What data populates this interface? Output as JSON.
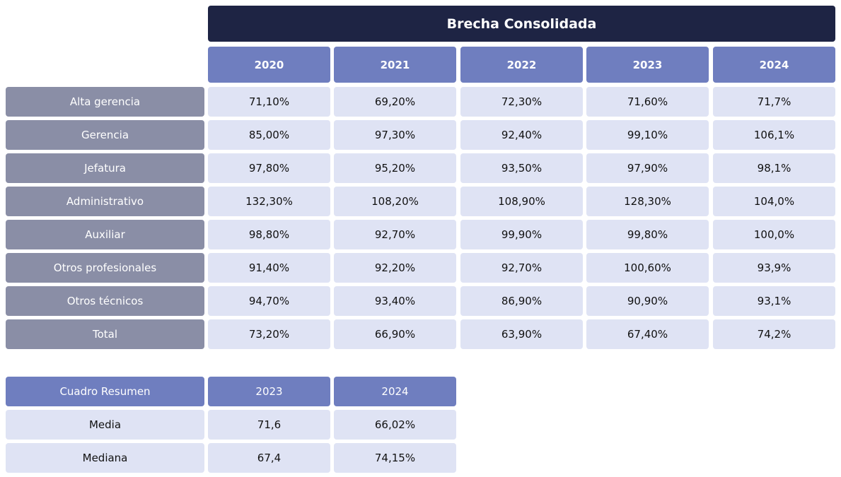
{
  "main_table": {
    "title": "Brecha Consolidada",
    "years": [
      "2020",
      "2021",
      "2022",
      "2023",
      "2024"
    ],
    "rows": [
      {
        "label": "Alta gerencia",
        "values": [
          "71,10%",
          "69,20%",
          "72,30%",
          "71,60%",
          "71,7%"
        ]
      },
      {
        "label": "Gerencia",
        "values": [
          "85,00%",
          "97,30%",
          "92,40%",
          "99,10%",
          "106,1%"
        ]
      },
      {
        "label": "Jefatura",
        "values": [
          "97,80%",
          "95,20%",
          "93,50%",
          "97,90%",
          "98,1%"
        ]
      },
      {
        "label": "Administrativo",
        "values": [
          "132,30%",
          "108,20%",
          "108,90%",
          "128,30%",
          "104,0%"
        ]
      },
      {
        "label": "Auxiliar",
        "values": [
          "98,80%",
          "92,70%",
          "99,90%",
          "99,80%",
          "100,0%"
        ]
      },
      {
        "label": "Otros profesionales",
        "values": [
          "91,40%",
          "92,20%",
          "92,70%",
          "100,60%",
          "93,9%"
        ]
      },
      {
        "label": "Otros técnicos",
        "values": [
          "94,70%",
          "93,40%",
          "86,90%",
          "90,90%",
          "93,1%"
        ]
      },
      {
        "label": "Total",
        "values": [
          "73,20%",
          "66,90%",
          "63,90%",
          "67,40%",
          "74,2%"
        ]
      }
    ]
  },
  "summary_table": {
    "header_label": "Cuadro Resumen",
    "years": [
      "2023",
      "2024"
    ],
    "rows": [
      {
        "label": "Media",
        "values": [
          "71,6",
          "66,02%"
        ]
      },
      {
        "label": "Mediana",
        "values": [
          "67,4",
          "74,15%"
        ]
      }
    ]
  },
  "colors": {
    "title_bg": "#1e2444",
    "header_bg": "#6f7ebf",
    "row_label_bg": "#8a8ea6",
    "cell_bg": "#dfe3f4"
  }
}
